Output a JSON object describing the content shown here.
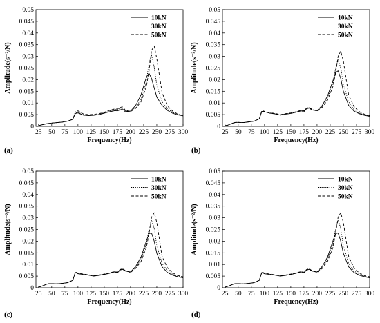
{
  "chart_data": [
    {
      "type": "line",
      "panel_label": "(a)",
      "xlabel": "Frequency(Hz)",
      "ylabel": "Amplitude(s⁻²/N)",
      "xlim": [
        20,
        300
      ],
      "ylim": [
        0,
        0.05
      ],
      "xticks": [
        "25",
        "50",
        "75",
        "100",
        "125",
        "150",
        "175",
        "200",
        "225",
        "250",
        "275",
        "300"
      ],
      "yticks": [
        "0",
        "0.005",
        "0.01",
        "0.015",
        "0.02",
        "0.025",
        "0.03",
        "0.035",
        "0.04",
        "0.045",
        "0.05"
      ],
      "legend_position": "top-right",
      "x": [
        25,
        30,
        40,
        50,
        60,
        70,
        80,
        90,
        95,
        100,
        110,
        120,
        130,
        140,
        150,
        160,
        170,
        175,
        180,
        185,
        190,
        200,
        210,
        220,
        230,
        235,
        240,
        245,
        250,
        260,
        270,
        280,
        290,
        300
      ],
      "series": [
        {
          "name": "10kN",
          "style": "solid",
          "values": [
            0.0003,
            0.0006,
            0.0011,
            0.0014,
            0.0016,
            0.0018,
            0.0022,
            0.003,
            0.0055,
            0.0057,
            0.0048,
            0.0046,
            0.0047,
            0.005,
            0.0056,
            0.0062,
            0.0067,
            0.0066,
            0.007,
            0.0074,
            0.0062,
            0.0065,
            0.009,
            0.0135,
            0.021,
            0.0228,
            0.0205,
            0.0165,
            0.0125,
            0.009,
            0.0068,
            0.0056,
            0.0049,
            0.0045
          ]
        },
        {
          "name": "30kN",
          "style": "dotted",
          "values": [
            0.0003,
            0.0006,
            0.0011,
            0.0014,
            0.0016,
            0.0018,
            0.0022,
            0.003,
            0.0058,
            0.006,
            0.005,
            0.0048,
            0.0049,
            0.0052,
            0.0058,
            0.0065,
            0.0072,
            0.007,
            0.0076,
            0.008,
            0.0066,
            0.0063,
            0.0082,
            0.0115,
            0.019,
            0.027,
            0.0305,
            0.0255,
            0.0175,
            0.0105,
            0.0075,
            0.006,
            0.005,
            0.0045
          ]
        },
        {
          "name": "50kN",
          "style": "dashed",
          "values": [
            0.0003,
            0.0006,
            0.0011,
            0.0014,
            0.0016,
            0.0018,
            0.0022,
            0.003,
            0.0062,
            0.0066,
            0.0053,
            0.005,
            0.0051,
            0.0054,
            0.006,
            0.0068,
            0.0075,
            0.0073,
            0.008,
            0.0085,
            0.0069,
            0.0063,
            0.0077,
            0.0105,
            0.017,
            0.0235,
            0.0325,
            0.0345,
            0.029,
            0.0145,
            0.0088,
            0.0065,
            0.0052,
            0.0046
          ]
        }
      ]
    },
    {
      "type": "line",
      "panel_label": "(b)",
      "xlabel": "Frequency(Hz)",
      "ylabel": "Amplitude(s⁻²/N)",
      "xlim": [
        20,
        300
      ],
      "ylim": [
        0,
        0.05
      ],
      "xticks": [
        "25",
        "50",
        "75",
        "100",
        "125",
        "150",
        "175",
        "200",
        "225",
        "250",
        "275",
        "300"
      ],
      "yticks": [
        "0",
        "0.005",
        "0.01",
        "0.015",
        "0.02",
        "0.025",
        "0.03",
        "0.035",
        "0.04",
        "0.045",
        "0.05"
      ],
      "legend_position": "top-right",
      "x": [
        25,
        30,
        40,
        45,
        50,
        60,
        70,
        80,
        90,
        95,
        100,
        110,
        120,
        130,
        140,
        150,
        160,
        170,
        175,
        180,
        185,
        190,
        200,
        210,
        220,
        230,
        235,
        240,
        245,
        250,
        260,
        270,
        280,
        290,
        300
      ],
      "series": [
        {
          "name": "10kN",
          "style": "solid",
          "values": [
            0.0003,
            0.0005,
            0.0014,
            0.0017,
            0.0017,
            0.0016,
            0.0019,
            0.0022,
            0.0032,
            0.0064,
            0.0062,
            0.0056,
            0.0053,
            0.0048,
            0.0052,
            0.0055,
            0.006,
            0.0066,
            0.0062,
            0.0075,
            0.0078,
            0.007,
            0.0067,
            0.009,
            0.013,
            0.0195,
            0.023,
            0.0238,
            0.0205,
            0.015,
            0.009,
            0.0065,
            0.0054,
            0.0047,
            0.0043
          ]
        },
        {
          "name": "30kN",
          "style": "dotted",
          "values": [
            0.0003,
            0.0005,
            0.0014,
            0.0017,
            0.0017,
            0.0016,
            0.0019,
            0.0022,
            0.0032,
            0.0066,
            0.0062,
            0.0057,
            0.0054,
            0.0049,
            0.0053,
            0.0056,
            0.0061,
            0.0068,
            0.0064,
            0.0077,
            0.008,
            0.0071,
            0.0065,
            0.0085,
            0.012,
            0.0185,
            0.0245,
            0.0285,
            0.025,
            0.018,
            0.0105,
            0.0072,
            0.0057,
            0.0049,
            0.0045
          ]
        },
        {
          "name": "50kN",
          "style": "dashed",
          "values": [
            0.0003,
            0.0005,
            0.0014,
            0.0017,
            0.0017,
            0.0016,
            0.0019,
            0.0022,
            0.0032,
            0.0068,
            0.0064,
            0.0058,
            0.0055,
            0.005,
            0.0054,
            0.0057,
            0.0062,
            0.0069,
            0.0066,
            0.0078,
            0.0082,
            0.0073,
            0.0066,
            0.0082,
            0.0112,
            0.017,
            0.0225,
            0.03,
            0.0322,
            0.028,
            0.0135,
            0.0085,
            0.0063,
            0.0052,
            0.0046
          ]
        }
      ]
    },
    {
      "type": "line",
      "panel_label": "(c)",
      "xlabel": "Frequency(Hz)",
      "ylabel": "Amplitude(s⁻²/N)",
      "xlim": [
        20,
        300
      ],
      "ylim": [
        0,
        0.05
      ],
      "xticks": [
        "25",
        "50",
        "75",
        "100",
        "125",
        "150",
        "175",
        "200",
        "225",
        "250",
        "275",
        "300"
      ],
      "yticks": [
        "0",
        "0.005",
        "0.01",
        "0.015",
        "0.02",
        "0.025",
        "0.03",
        "0.035",
        "0.04",
        "0.045",
        "0.05"
      ],
      "legend_position": "top-right",
      "x": [
        25,
        30,
        40,
        45,
        50,
        60,
        70,
        80,
        90,
        95,
        100,
        110,
        120,
        130,
        140,
        150,
        160,
        170,
        175,
        180,
        185,
        190,
        200,
        210,
        220,
        230,
        235,
        240,
        245,
        250,
        260,
        270,
        280,
        290,
        300
      ],
      "series": [
        {
          "name": "10kN",
          "style": "solid",
          "values": [
            0.0003,
            0.0006,
            0.0015,
            0.0018,
            0.0018,
            0.0017,
            0.0019,
            0.0022,
            0.0032,
            0.0066,
            0.006,
            0.0057,
            0.0054,
            0.005,
            0.0053,
            0.0057,
            0.0062,
            0.0068,
            0.0064,
            0.0076,
            0.0079,
            0.0072,
            0.0068,
            0.0092,
            0.0132,
            0.02,
            0.0232,
            0.0235,
            0.02,
            0.0148,
            0.009,
            0.0066,
            0.0054,
            0.0047,
            0.0043
          ]
        },
        {
          "name": "30kN",
          "style": "dotted",
          "values": [
            0.0003,
            0.0006,
            0.0015,
            0.0018,
            0.0018,
            0.0017,
            0.0019,
            0.0022,
            0.0032,
            0.0066,
            0.0061,
            0.0058,
            0.0055,
            0.0051,
            0.0054,
            0.0058,
            0.0063,
            0.0069,
            0.0065,
            0.0077,
            0.008,
            0.0073,
            0.0066,
            0.0087,
            0.0122,
            0.0188,
            0.025,
            0.029,
            0.0255,
            0.018,
            0.0105,
            0.0073,
            0.0058,
            0.005,
            0.0045
          ]
        },
        {
          "name": "50kN",
          "style": "dashed",
          "values": [
            0.0003,
            0.0006,
            0.0015,
            0.0018,
            0.0018,
            0.0017,
            0.0019,
            0.0022,
            0.0032,
            0.0068,
            0.0063,
            0.0059,
            0.0056,
            0.0052,
            0.0055,
            0.0059,
            0.0064,
            0.007,
            0.0067,
            0.0078,
            0.0082,
            0.0074,
            0.0066,
            0.0083,
            0.0113,
            0.0172,
            0.023,
            0.0303,
            0.0322,
            0.028,
            0.0135,
            0.0086,
            0.0064,
            0.0053,
            0.0047
          ]
        }
      ]
    },
    {
      "type": "line",
      "panel_label": "(d)",
      "xlabel": "Frequency(Hz)",
      "ylabel": "Amplitude(s⁻²/N)",
      "xlim": [
        20,
        300
      ],
      "ylim": [
        0,
        0.05
      ],
      "xticks": [
        "25",
        "50",
        "75",
        "100",
        "125",
        "150",
        "175",
        "200",
        "225",
        "250",
        "275",
        "300"
      ],
      "yticks": [
        "0",
        "0.005",
        "0.01",
        "0.015",
        "0.02",
        "0.025",
        "0.03",
        "0.035",
        "0.04",
        "0.045",
        "0.05"
      ],
      "legend_position": "top-right",
      "x": [
        25,
        30,
        40,
        45,
        50,
        60,
        70,
        80,
        90,
        95,
        100,
        110,
        120,
        130,
        140,
        150,
        160,
        170,
        175,
        180,
        185,
        190,
        200,
        210,
        220,
        230,
        235,
        240,
        245,
        250,
        260,
        270,
        280,
        290,
        300
      ],
      "series": [
        {
          "name": "10kN",
          "style": "solid",
          "values": [
            0.0003,
            0.0006,
            0.0015,
            0.0018,
            0.0018,
            0.0017,
            0.0019,
            0.0022,
            0.0032,
            0.0066,
            0.006,
            0.0057,
            0.0054,
            0.005,
            0.0053,
            0.0057,
            0.0062,
            0.0068,
            0.0064,
            0.0076,
            0.0079,
            0.0072,
            0.0068,
            0.0092,
            0.0132,
            0.02,
            0.0232,
            0.0235,
            0.02,
            0.0148,
            0.009,
            0.0066,
            0.0054,
            0.0047,
            0.0043
          ]
        },
        {
          "name": "30kN",
          "style": "dotted",
          "values": [
            0.0003,
            0.0006,
            0.0015,
            0.0018,
            0.0018,
            0.0017,
            0.0019,
            0.0022,
            0.0032,
            0.0066,
            0.0061,
            0.0058,
            0.0055,
            0.0051,
            0.0054,
            0.0058,
            0.0063,
            0.0069,
            0.0065,
            0.0077,
            0.008,
            0.0073,
            0.0066,
            0.0087,
            0.0122,
            0.0188,
            0.025,
            0.029,
            0.0255,
            0.018,
            0.0105,
            0.0073,
            0.0058,
            0.005,
            0.0045
          ]
        },
        {
          "name": "50kN",
          "style": "dashed",
          "values": [
            0.0003,
            0.0006,
            0.0015,
            0.0018,
            0.0018,
            0.0017,
            0.0019,
            0.0022,
            0.0032,
            0.0068,
            0.0063,
            0.0059,
            0.0056,
            0.0052,
            0.0055,
            0.0059,
            0.0064,
            0.007,
            0.0067,
            0.0078,
            0.0082,
            0.0074,
            0.0066,
            0.0083,
            0.0113,
            0.0172,
            0.023,
            0.0303,
            0.0322,
            0.028,
            0.0135,
            0.0086,
            0.0064,
            0.0053,
            0.0047
          ]
        }
      ]
    }
  ]
}
